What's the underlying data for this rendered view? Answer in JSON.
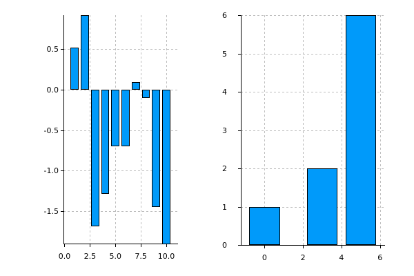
{
  "window": {
    "background": "#ffffff"
  },
  "colors": {
    "bar_fill": "#009AFA",
    "bar_border": "#000000",
    "grid": "#bdbdbd",
    "axis": "#000000",
    "tick_text": "#000000"
  },
  "chart_data": [
    {
      "id": "left-panel",
      "type": "bar",
      "title": "",
      "xlabel": "",
      "ylabel": "",
      "x": [
        1,
        2,
        3,
        4,
        5,
        6,
        7,
        8,
        9,
        10
      ],
      "values": [
        0.52,
        0.92,
        -1.69,
        -1.29,
        -0.7,
        -0.7,
        0.09,
        -0.1,
        -1.45,
        -2.0
      ],
      "bar_width": 0.8,
      "xlim": [
        -0.1,
        11.15
      ],
      "ylim": [
        -1.9,
        0.92
      ],
      "xticks": [
        0,
        2.5,
        5,
        7.5,
        10
      ],
      "xtick_labels": [
        "0.0",
        "2.5",
        "5.0",
        "7.5",
        "10.0"
      ],
      "yticks": [
        0.5,
        0,
        -0.5,
        -1,
        -1.5
      ],
      "ytick_labels": [
        "0.5",
        "0.0",
        "-0.5",
        "-1.0",
        "-1.5"
      ],
      "grid": true,
      "legend": "none",
      "notes": "bar at x=2 touches top edge; bar at x=10 is clipped below the bottom axis (value below -1.9, estimated -2.0)"
    },
    {
      "id": "right-panel",
      "type": "bar",
      "title": "",
      "xlabel": "",
      "ylabel": "",
      "x": [
        0,
        3,
        5
      ],
      "values": [
        1,
        2,
        6
      ],
      "bar_width": 1.6,
      "xlim": [
        -1.23,
        6.26
      ],
      "ylim": [
        0,
        6
      ],
      "xticks": [
        0,
        2,
        4,
        6
      ],
      "xtick_labels": [
        "0",
        "2",
        "4",
        "6"
      ],
      "yticks": [
        0,
        1,
        2,
        3,
        4,
        5,
        6
      ],
      "ytick_labels": [
        "0",
        "1",
        "2",
        "3",
        "4",
        "5",
        "6"
      ],
      "grid": true,
      "legend": "none",
      "notes": "bar at x=5 touches top edge"
    }
  ]
}
